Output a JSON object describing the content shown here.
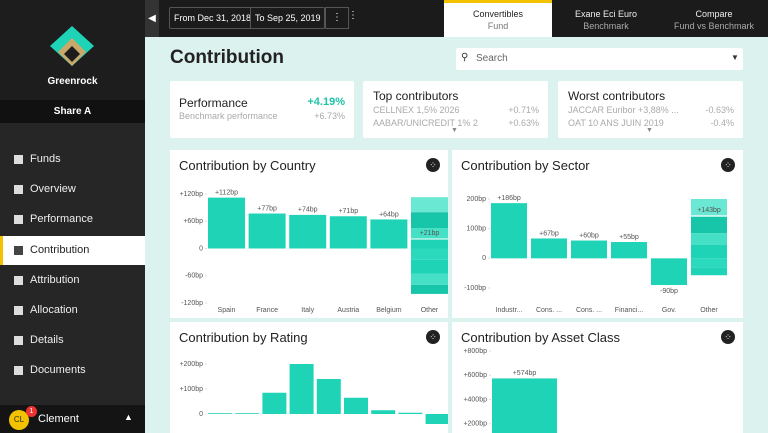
{
  "sidebar": {
    "brand": "Greenrock",
    "share": "Share A",
    "nav": [
      "Funds",
      "Overview",
      "Performance",
      "Contribution",
      "Attribution",
      "Allocation",
      "Details",
      "Documents"
    ],
    "active": 3,
    "user": {
      "initials": "CL",
      "badge": "1",
      "name": "Clement"
    }
  },
  "topbar": {
    "from": "From Dec 31, 2018",
    "to": "To Sep 25, 2019",
    "tabs": [
      {
        "title": "Convertibles",
        "subtitle": "Fund"
      },
      {
        "title": "Exane Eci Euro",
        "subtitle": "Benchmark"
      },
      {
        "title": "Compare",
        "subtitle": "Fund vs Benchmark"
      }
    ]
  },
  "header": {
    "title": "Contribution",
    "search": "Search"
  },
  "cards": {
    "performance": {
      "label": "Performance",
      "value": "+4.19%",
      "benchmark_label": "Benchmark performance",
      "benchmark_value": "+6.73%"
    },
    "top": {
      "title": "Top contributors",
      "rows": [
        [
          "CELLNEX 1,5% 2026",
          "+0.71%"
        ],
        [
          "AABAR/UNICREDIT 1% 2",
          "+0.63%"
        ]
      ]
    },
    "worst": {
      "title": "Worst contributors",
      "rows": [
        [
          "JACCAR Euribor +3,88% ...",
          "-0.63%"
        ],
        [
          "OAT 10 ANS JUIN 2019",
          "-0.4%"
        ]
      ]
    }
  },
  "charts": [
    {
      "type": "bar",
      "title": "Contribution by Country",
      "ylim": [
        -120,
        120
      ],
      "yticks": [
        {
          "value": 120,
          "label": "+120bp"
        },
        {
          "value": 60,
          "label": "+60bp"
        },
        0,
        {
          "value": -60,
          "label": "-60bp"
        },
        {
          "value": -120,
          "label": "-120bp"
        }
      ],
      "categories": [
        "Spain",
        "France",
        "Italy",
        "Austria",
        "Belgium",
        "Other"
      ],
      "values": [
        112,
        77,
        74,
        71,
        64,
        21
      ],
      "value_labels": [
        "+112bp",
        "+77bp",
        "+74bp",
        "+71bp",
        "+64bp",
        "+21bp"
      ],
      "segments": [
        20,
        25,
        35,
        33,
        -25,
        -30,
        -25,
        -20
      ],
      "color": "#1fd4b6"
    },
    {
      "type": "bar",
      "title": "Contribution by Sector",
      "ylim": [
        -100,
        200
      ],
      "yticks": [
        {
          "value": 200,
          "label": "200bp"
        },
        {
          "value": 100,
          "label": "100bp"
        },
        0,
        {
          "value": -100,
          "label": "-100bp"
        }
      ],
      "categories": [
        "Industr...",
        "Cons. ...",
        "Cons. ...",
        "Financi...",
        "Gov.",
        "Other"
      ],
      "values": [
        186,
        67,
        60,
        55,
        -90,
        143
      ],
      "value_labels": [
        "+186bp",
        "+67bp",
        "+60bp",
        "+55bp",
        "-90bp",
        "+143bp"
      ],
      "segments": [
        45,
        40,
        55,
        60,
        -30,
        -27
      ],
      "color": "#1fd4b6"
    },
    {
      "type": "bar",
      "title": "Contribution by Rating",
      "ylim": [
        -100,
        200
      ],
      "yticks": [
        {
          "value": 200,
          "label": "+200bp"
        },
        {
          "value": 100,
          "label": "+100bp"
        },
        0
      ],
      "values": [
        3,
        3,
        85,
        200,
        140,
        65,
        15,
        5,
        -40
      ],
      "color": "#1fd4b6"
    },
    {
      "type": "bar",
      "title": "Contribution by Asset Class",
      "ylim": [
        0,
        800
      ],
      "yticks": [
        {
          "value": 800,
          "label": "+800bp"
        },
        {
          "value": 600,
          "label": "+600bp"
        },
        {
          "value": 400,
          "label": "+400bp"
        },
        {
          "value": 200,
          "label": "+200bp"
        }
      ],
      "values": [
        574
      ],
      "value_labels": [
        "+574bp"
      ],
      "color": "#1fd4b6"
    }
  ]
}
